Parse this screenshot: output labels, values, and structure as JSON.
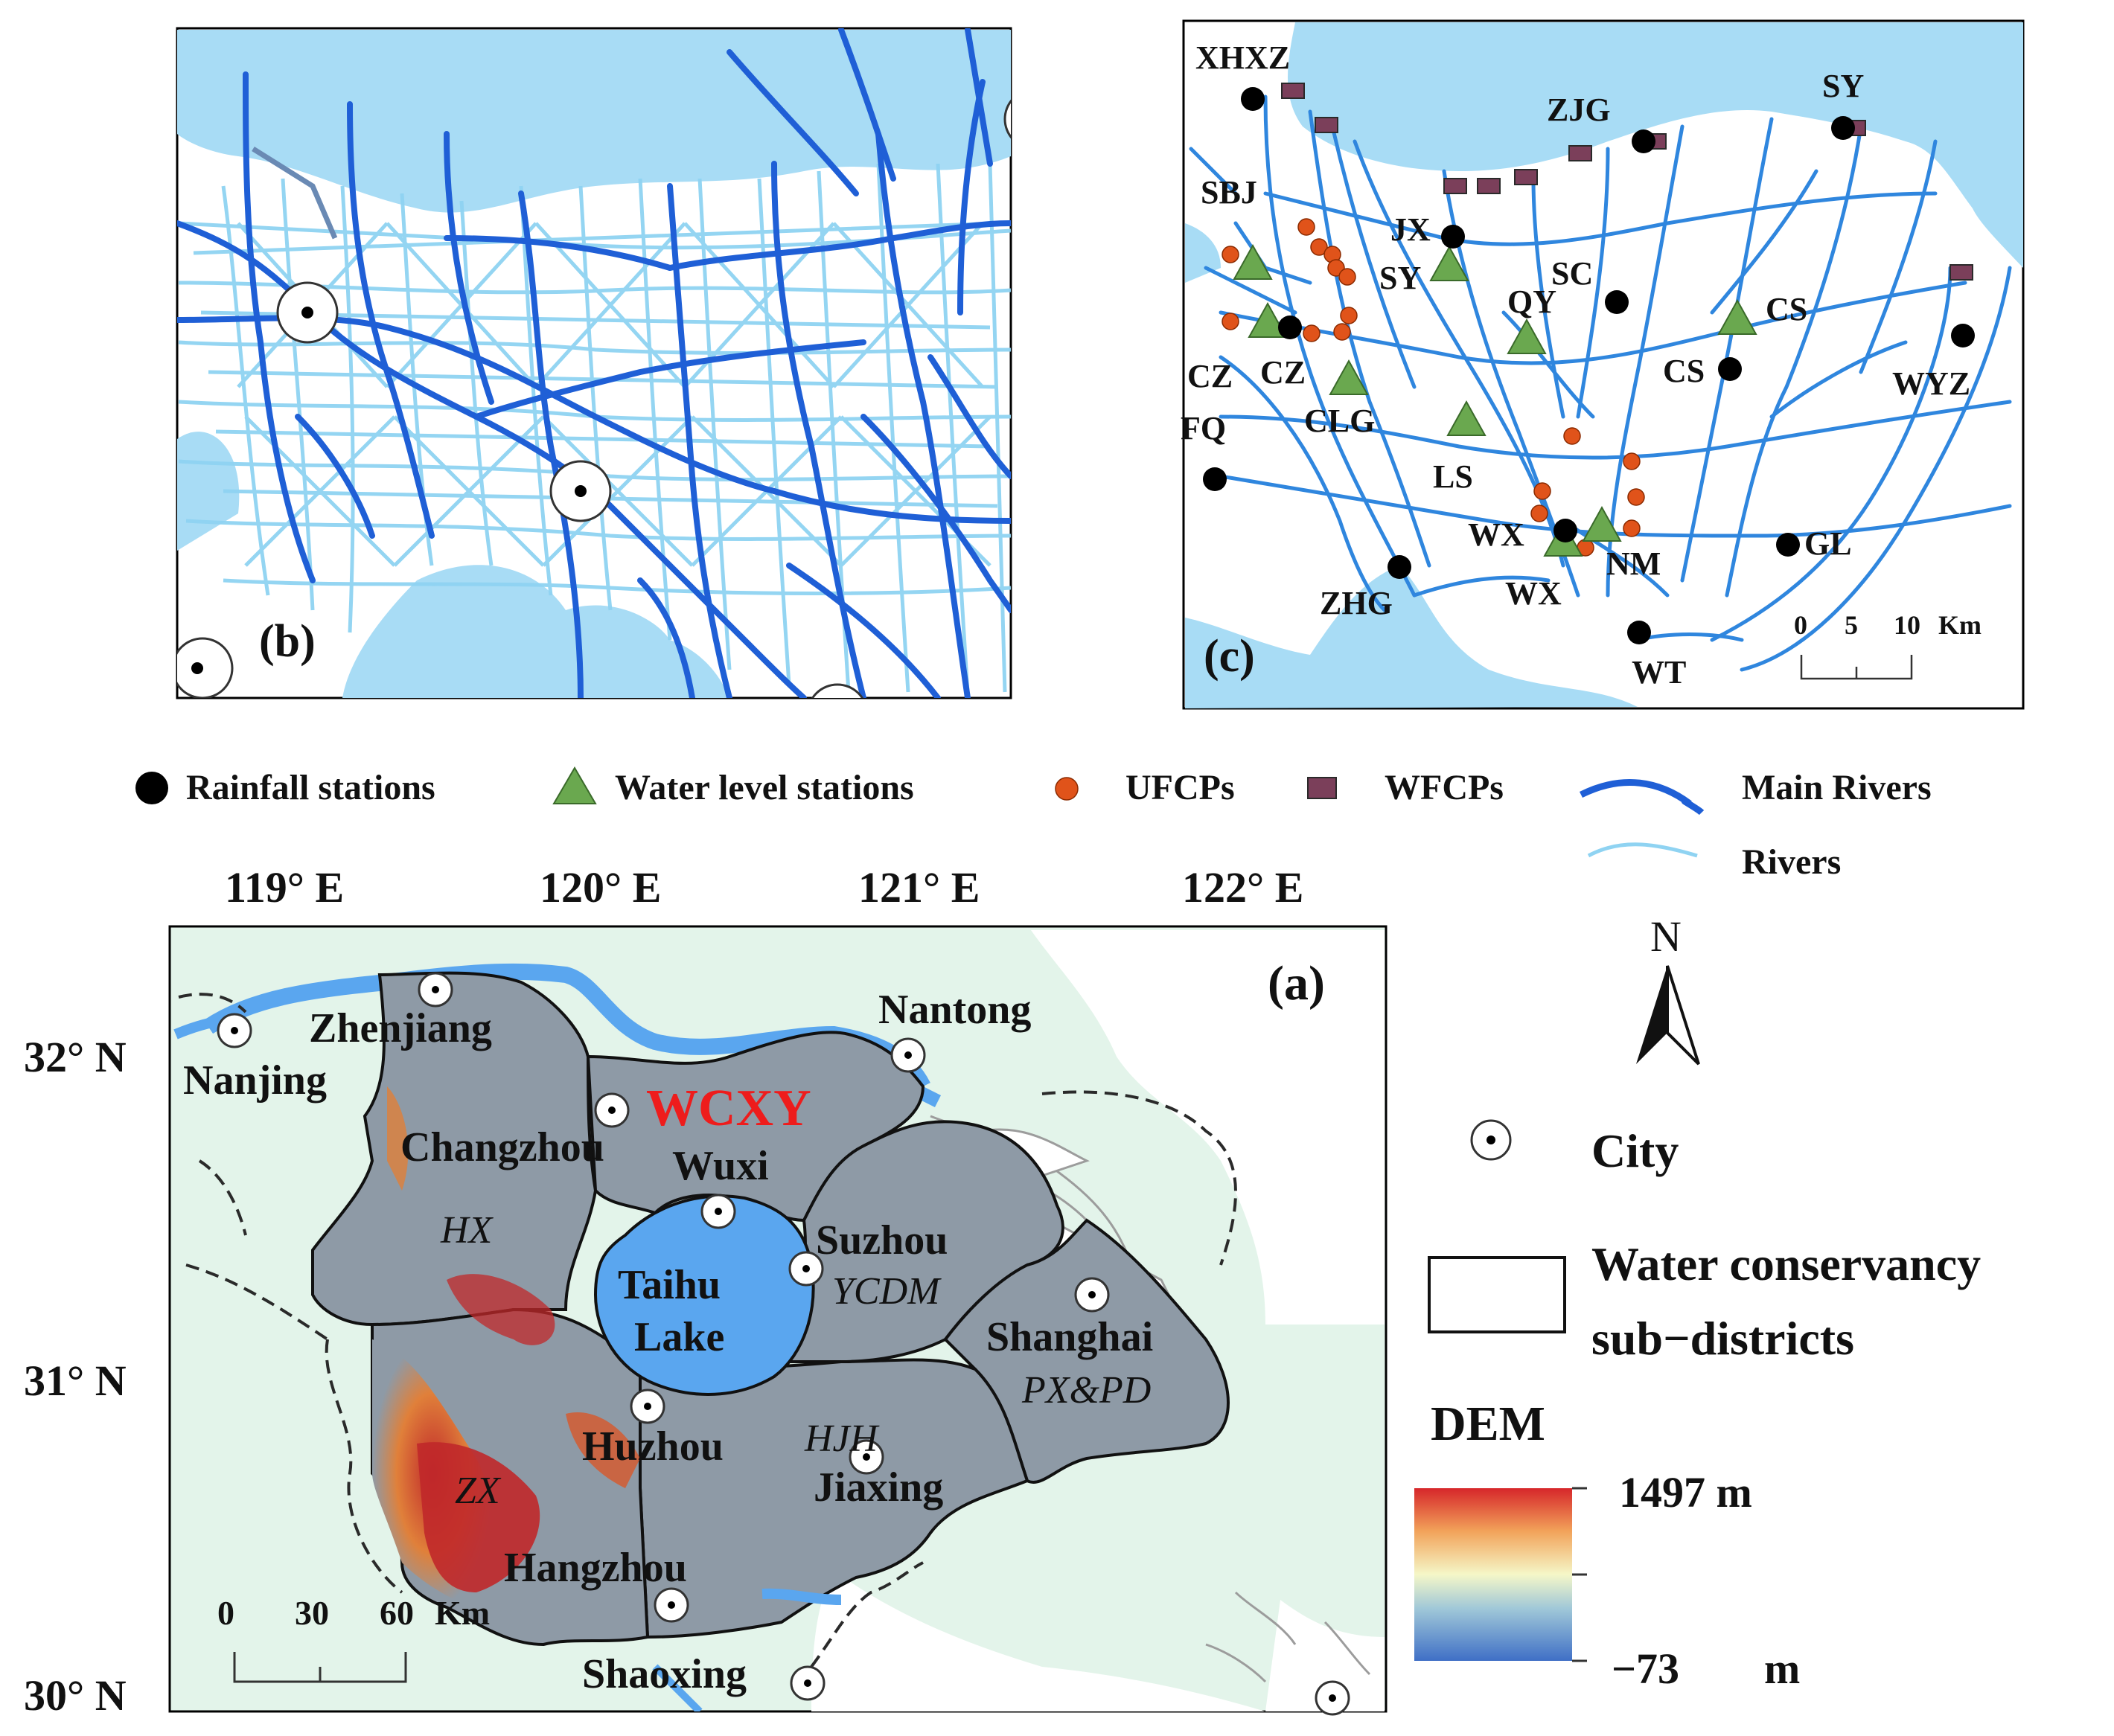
{
  "panels": {
    "b": {
      "label": "(b)"
    },
    "c": {
      "label": "(c)",
      "scale": {
        "ticks": [
          "0",
          "5",
          "10"
        ],
        "unit": "Km"
      },
      "rainfall_labels": [
        "XHXZ",
        "ZJG",
        "SY",
        "JX",
        "SC",
        "CZ",
        "CS",
        "WYZ",
        "FQ",
        "WX",
        "GL",
        "ZHG",
        "WT"
      ],
      "water_level_labels": [
        "SY",
        "QY",
        "CS",
        "CLG",
        "LS",
        "NM",
        "WX"
      ],
      "other_labels": [
        "SBJ",
        "CZ"
      ]
    },
    "a": {
      "label": "(a)",
      "lon_ticks": [
        "119° E",
        "120° E",
        "121° E",
        "122° E"
      ],
      "lat_ticks": [
        "32° N",
        "31° N",
        "30° N"
      ],
      "cities": [
        "Nanjing",
        "Zhenjiang",
        "Changzhou",
        "Wuxi",
        "Suzhou",
        "Nantong",
        "Shanghai",
        "Huzhou",
        "Jiaxing",
        "Hangzhou",
        "Shaoxing"
      ],
      "lake": [
        "Taihu",
        "Lake"
      ],
      "districts": [
        "HX",
        "YCDM",
        "PX&PD",
        "HJH",
        "ZX"
      ],
      "highlight_district": "WCXY",
      "scale": {
        "ticks": [
          "0",
          "30",
          "60"
        ],
        "unit": "Km"
      }
    }
  },
  "legend": {
    "rainfall": "Rainfall stations",
    "water_level": "Water level stations",
    "ufcp": "UFCPs",
    "wfcp": "WFCPs",
    "main_rivers": "Main Rivers",
    "rivers": "Rivers",
    "north": "N",
    "city": "City",
    "districts_line1": "Water conservancy",
    "districts_line2": "sub−districts",
    "dem_title": "DEM",
    "dem_max": "1497 m",
    "dem_min": "−73",
    "dem_min_unit": "m"
  },
  "colors": {
    "main_river": "#1f5fd6",
    "river": "#8fd3f2",
    "water": "#a8dcf5",
    "rainfall": "#000000",
    "water_level": "#6aa84f",
    "ufcp": "#e0531a",
    "wfcp": "#7b3f5a",
    "region": "#8e9aa6",
    "lake": "#5aa6ef",
    "background_land": "#e3f4ea"
  }
}
